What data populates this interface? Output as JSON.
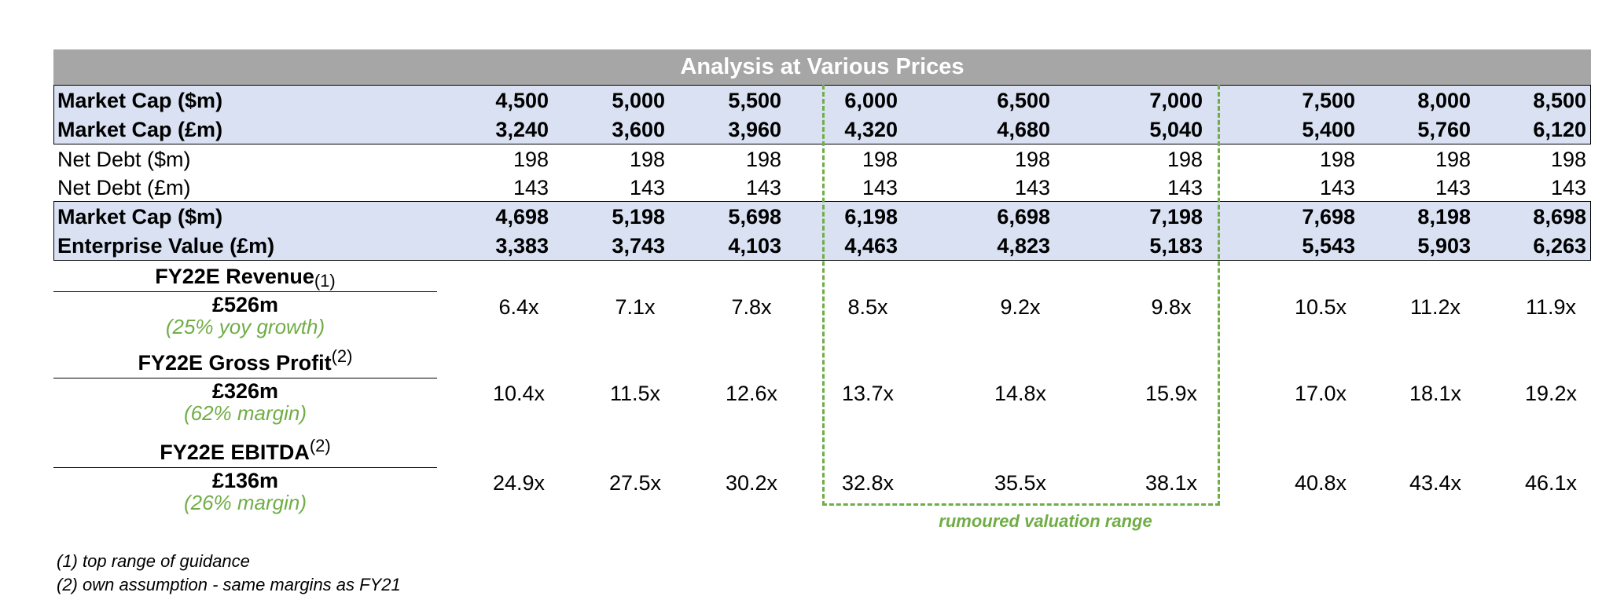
{
  "title": "Analysis at Various Prices",
  "rows": [
    {
      "label": "Market Cap ($m)",
      "bold": true,
      "values": [
        "4,500",
        "5,000",
        "5,500",
        "6,000",
        "6,500",
        "7,000",
        "7,500",
        "8,000",
        "8,500"
      ]
    },
    {
      "label": "Market Cap (£m)",
      "bold": true,
      "values": [
        "3,240",
        "3,600",
        "3,960",
        "4,320",
        "4,680",
        "5,040",
        "5,400",
        "5,760",
        "6,120"
      ]
    },
    {
      "label": "Net Debt ($m)",
      "bold": false,
      "values": [
        "198",
        "198",
        "198",
        "198",
        "198",
        "198",
        "198",
        "198",
        "198"
      ]
    },
    {
      "label": "Net Debt (£m)",
      "bold": false,
      "values": [
        "143",
        "143",
        "143",
        "143",
        "143",
        "143",
        "143",
        "143",
        "143"
      ]
    },
    {
      "label": "Market Cap ($m)",
      "bold": true,
      "values": [
        "4,698",
        "5,198",
        "5,698",
        "6,198",
        "6,698",
        "7,198",
        "7,698",
        "8,198",
        "8,698"
      ]
    },
    {
      "label": "Enterprise Value (£m)",
      "bold": true,
      "values": [
        "3,383",
        "3,743",
        "4,103",
        "4,463",
        "4,823",
        "5,183",
        "5,543",
        "5,903",
        "6,263"
      ]
    }
  ],
  "multiples": [
    {
      "title": "FY22E Revenue",
      "sup": "(1)",
      "value": "£526m",
      "note": "(25% yoy growth)",
      "values": [
        "6.4x",
        "7.1x",
        "7.8x",
        "8.5x",
        "9.2x",
        "9.8x",
        "10.5x",
        "11.2x",
        "11.9x"
      ]
    },
    {
      "title": "FY22E Gross Profit",
      "sup": "(2)",
      "value": "£326m",
      "note": "(62% margin)",
      "values": [
        "10.4x",
        "11.5x",
        "12.6x",
        "13.7x",
        "14.8x",
        "15.9x",
        "17.0x",
        "18.1x",
        "19.2x"
      ]
    },
    {
      "title": "FY22E EBITDA",
      "sup": "(2)",
      "value": "£136m",
      "note": "(26% margin)",
      "values": [
        "24.9x",
        "27.5x",
        "30.2x",
        "32.8x",
        "35.5x",
        "38.1x",
        "40.8x",
        "43.4x",
        "46.1x"
      ]
    }
  ],
  "range_label": "rumoured valuation range",
  "footnotes": [
    "(1) top range of guidance",
    "(2) own assumption - same margins as FY21"
  ],
  "colors": {
    "header_bg": "#a6a6a6",
    "band_bg": "#d9e1f2",
    "accent_green": "#70ad47"
  }
}
